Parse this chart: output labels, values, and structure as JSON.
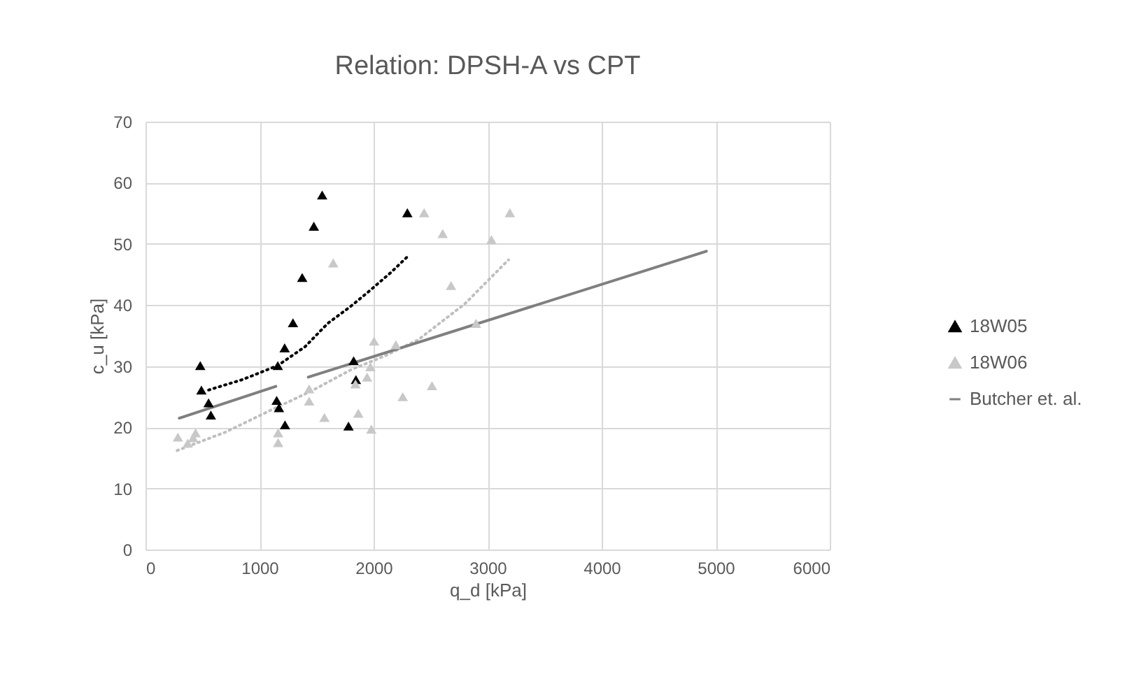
{
  "chart_data": {
    "type": "scatter",
    "title": "Relation: DPSH-A vs CPT",
    "xlabel": "q_d [kPa]",
    "ylabel": "c_u [kPa]",
    "xlim": [
      0,
      6000
    ],
    "xticks": [
      0,
      1000,
      2000,
      3000,
      4000,
      5000,
      6000
    ],
    "ylim": [
      0,
      70
    ],
    "yticks": [
      0,
      10,
      20,
      30,
      40,
      50,
      60,
      70
    ],
    "grid": true,
    "legend": "right",
    "series": [
      {
        "name": "18W05",
        "color": "#000000",
        "marker": "triangle",
        "x": [
          480,
          490,
          553,
          573,
          1160,
          1150,
          1170,
          1223,
          1220,
          1293,
          1374,
          1476,
          1549,
          1825,
          1845,
          1780,
          2296
        ],
        "values": [
          30.1,
          26.1,
          24.0,
          22.0,
          30.1,
          24.4,
          23.2,
          20.4,
          33.0,
          37.1,
          44.5,
          52.9,
          58.0,
          30.9,
          27.8,
          20.2,
          55.1
        ]
      },
      {
        "name": "18W06",
        "color": "#c8c8c8",
        "marker": "triangle",
        "x": [
          284,
          370,
          418,
          439,
          1163,
          1163,
          1435,
          1435,
          1569,
          1646,
          1866,
          1841,
          1943,
          1972,
          2004,
          1980,
          2195,
          2256,
          2443,
          2512,
          2606,
          2679,
          2898,
          3033,
          3195
        ],
        "values": [
          18.4,
          17.4,
          18.3,
          19.1,
          19.1,
          17.5,
          26.3,
          24.3,
          21.6,
          46.9,
          22.3,
          27.1,
          28.2,
          29.9,
          34.1,
          19.7,
          33.5,
          25.0,
          55.1,
          26.8,
          51.7,
          43.2,
          37.0,
          50.7,
          55.1
        ]
      },
      {
        "type": "line",
        "color": "#000000",
        "line_style": "dotted",
        "x": [
          553,
          850,
          1160,
          1400,
          1598,
          1800,
          1963,
          2150,
          2296
        ],
        "values": [
          26.1,
          27.8,
          30.1,
          33.2,
          37.0,
          39.8,
          42.3,
          45.3,
          47.9
        ]
      },
      {
        "type": "line",
        "color": "#bfbfbf",
        "line_style": "dotted",
        "x": [
          277,
          700,
          1110,
          1450,
          1801,
          2100,
          2390,
          2800,
          3183
        ],
        "values": [
          16.2,
          19.2,
          22.9,
          25.9,
          29.4,
          31.7,
          34.3,
          40.2,
          47.4
        ]
      },
      {
        "type": "line",
        "name": "Butcher et. al.",
        "color": "#7f7f7f",
        "line_style": "solid",
        "x": [
          296,
          1143,
          1285,
          1427,
          4918
        ],
        "values": [
          21.5,
          26.7,
          null,
          28.2,
          48.8
        ]
      }
    ]
  }
}
